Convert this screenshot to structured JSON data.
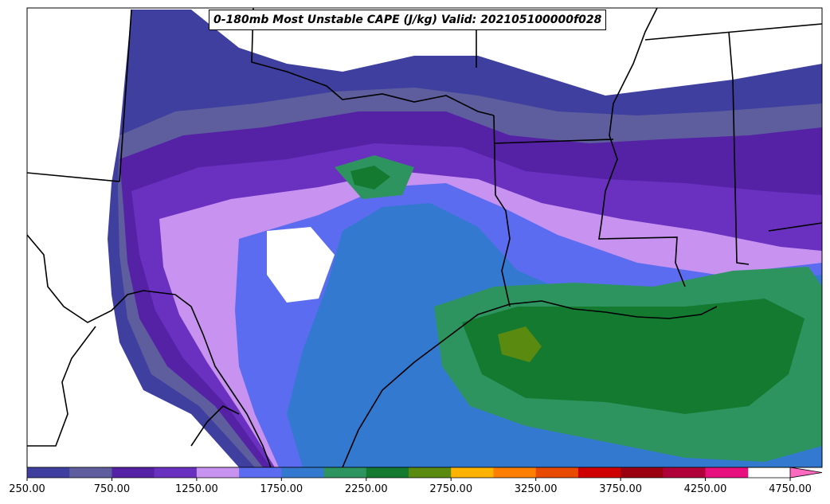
{
  "title": "0-180mb Most Unstable CAPE (J/kg) Valid: 202105100000f028",
  "colorbar": {
    "tick_labels": [
      "250.00",
      "750.00",
      "1250.00",
      "1750.00",
      "2250.00",
      "2750.00",
      "3250.00",
      "3750.00",
      "4250.00",
      "4750.00"
    ],
    "levels": [
      250,
      500,
      750,
      1000,
      1250,
      1500,
      1750,
      2000,
      2250,
      2500,
      2750,
      3000,
      3250,
      3500,
      3750,
      4000,
      4250,
      4500,
      4750
    ],
    "colors": [
      "#3f3f9f",
      "#5e5e9e",
      "#5522a6",
      "#6a30c0",
      "#c892f0",
      "#5b6cf0",
      "#3479d0",
      "#2d9460",
      "#137a30",
      "#5a8a10",
      "#ffb200",
      "#ff7f00",
      "#e84a00",
      "#cf0000",
      "#9a0010",
      "#b0003a",
      "#e8107f",
      "#ff6ac0"
    ],
    "extend": "max"
  },
  "colors": {
    "cape_low": "#3f3f9f",
    "cape_purple": "#5522a6",
    "cape_light_purple": "#c892f0",
    "cape_blue": "#5b6cf0",
    "cape_mid_blue": "#3479d0",
    "cape_green": "#2d9460",
    "cape_dark_green": "#137a30",
    "cape_olive": "#5a8a10",
    "boundaries": "#000000"
  }
}
